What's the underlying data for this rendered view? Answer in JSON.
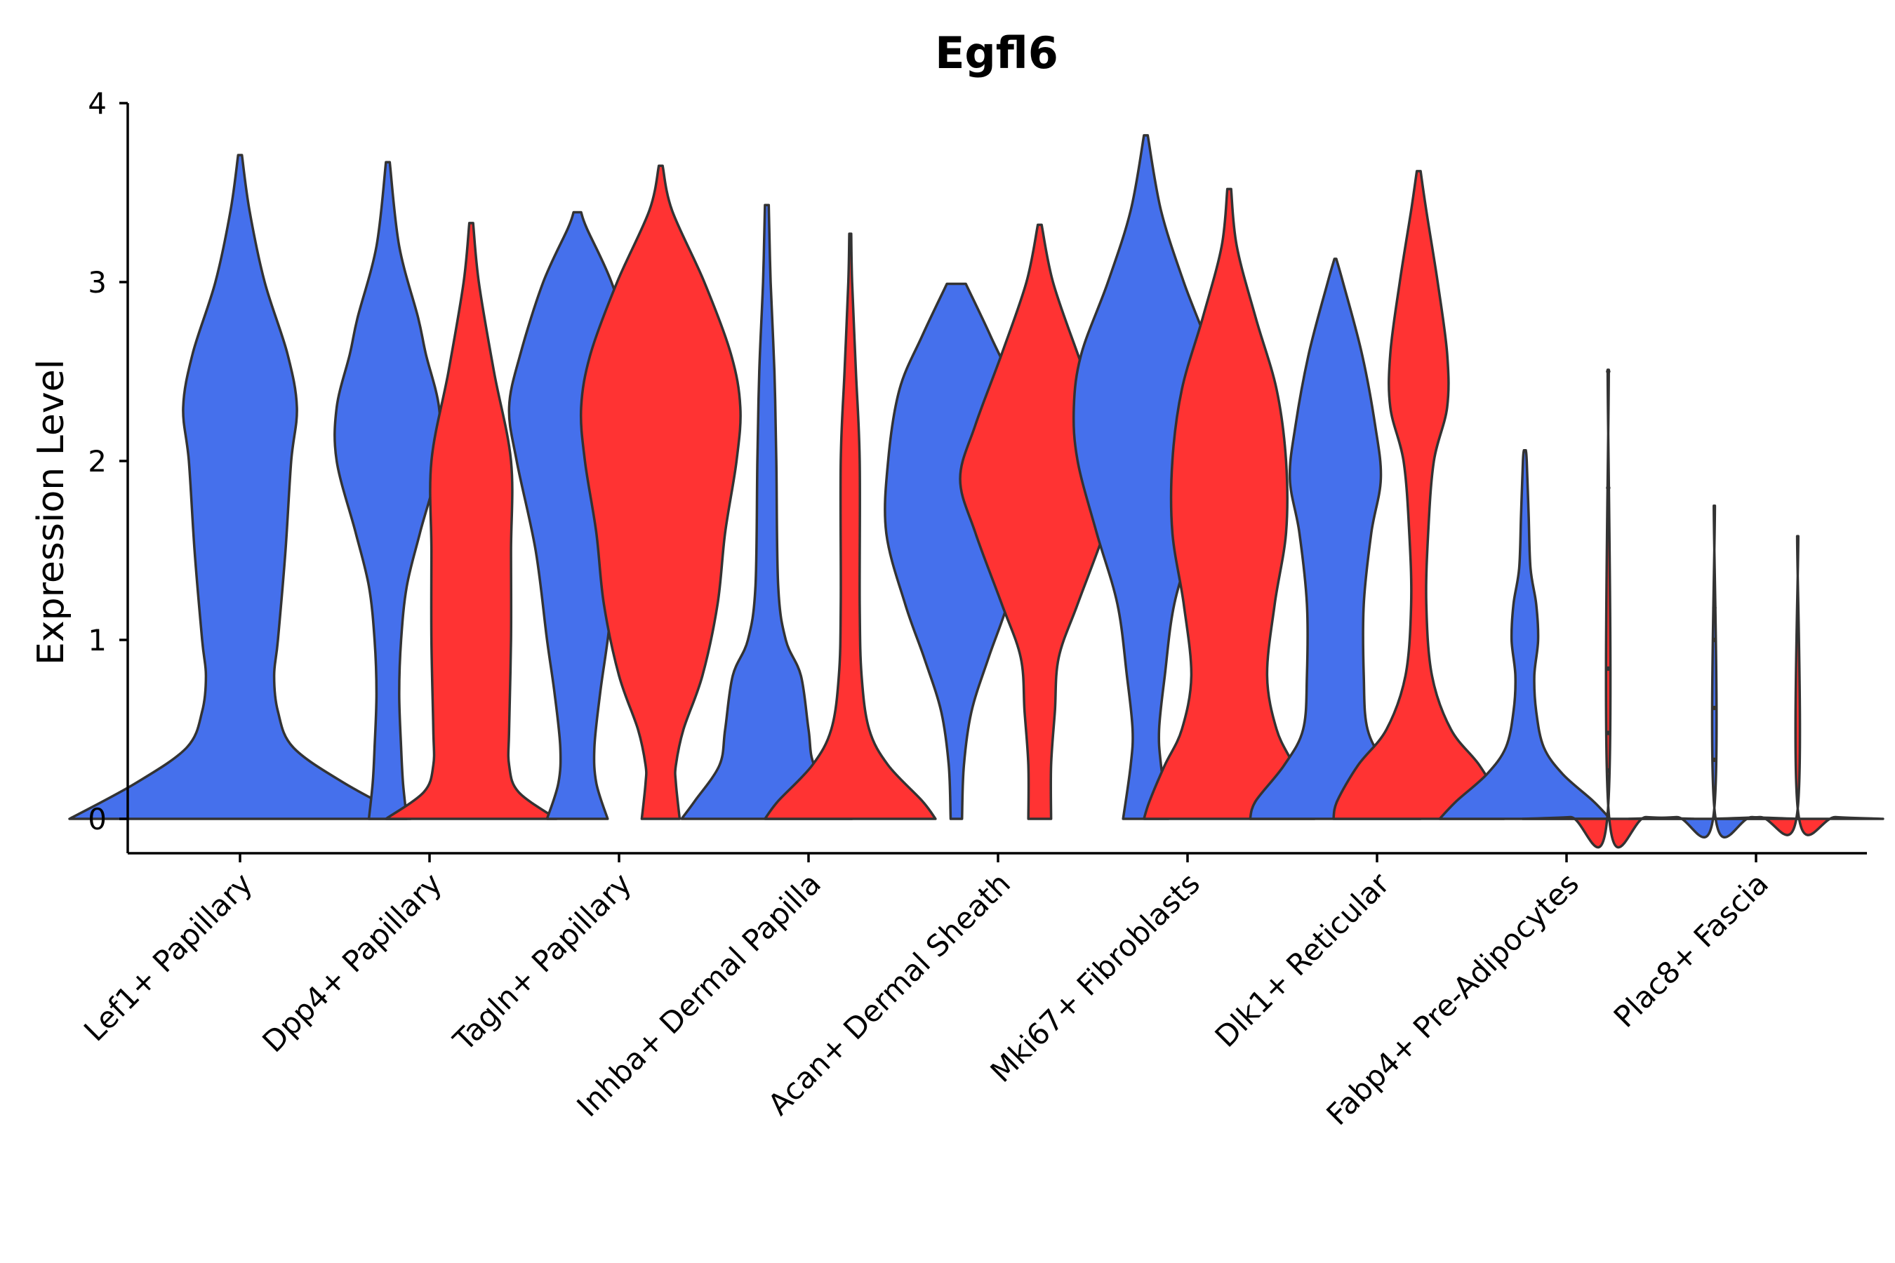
{
  "chart_data": {
    "type": "violin",
    "title": "Egfl6",
    "xlabel": "",
    "ylabel": "Expression Level",
    "ylim": [
      -0.19,
      4.0
    ],
    "yticks": [
      0,
      1,
      2,
      3,
      4
    ],
    "grid": false,
    "legend": "none",
    "colors": {
      "blue": "#4570EC",
      "red": "#FF3333",
      "outline": "#333333"
    },
    "categories": [
      "Lef1+ Papillary",
      "Dpp4+ Papillary",
      "Tagln+ Papillary",
      "Inhba+ Dermal Papilla",
      "Acan+ Dermal Sheath",
      "Mki67+ Fibroblasts",
      "Dlk1+ Reticular",
      "Fabp4+ Pre-Adipocytes",
      "Plac8+ Fascia"
    ],
    "violins": [
      {
        "category": 0,
        "offset": 0,
        "color": "blue",
        "max": 3.71,
        "profile": [
          [
            0,
            0.9
          ],
          [
            0.2,
            0.55
          ],
          [
            0.4,
            0.28
          ],
          [
            0.6,
            0.2
          ],
          [
            0.8,
            0.18
          ],
          [
            1.0,
            0.2
          ],
          [
            1.5,
            0.24
          ],
          [
            2.0,
            0.27
          ],
          [
            2.3,
            0.3
          ],
          [
            2.6,
            0.25
          ],
          [
            3.0,
            0.13
          ],
          [
            3.4,
            0.05
          ],
          [
            3.71,
            0.01
          ]
        ]
      },
      {
        "category": 1,
        "offset": -0.22,
        "color": "blue",
        "max": 3.67,
        "profile": [
          [
            0,
            0.1
          ],
          [
            0.2,
            0.08
          ],
          [
            0.4,
            0.07
          ],
          [
            0.7,
            0.06
          ],
          [
            1.0,
            0.07
          ],
          [
            1.3,
            0.1
          ],
          [
            1.6,
            0.17
          ],
          [
            2.0,
            0.27
          ],
          [
            2.3,
            0.27
          ],
          [
            2.6,
            0.2
          ],
          [
            2.8,
            0.16
          ],
          [
            3.2,
            0.06
          ],
          [
            3.67,
            0.01
          ]
        ]
      },
      {
        "category": 1,
        "offset": 0.22,
        "color": "red",
        "max": 3.33,
        "profile": [
          [
            0,
            0.45
          ],
          [
            0.15,
            0.25
          ],
          [
            0.3,
            0.2
          ],
          [
            0.5,
            0.2
          ],
          [
            1.0,
            0.21
          ],
          [
            1.5,
            0.21
          ],
          [
            2.0,
            0.21
          ],
          [
            2.5,
            0.12
          ],
          [
            3.0,
            0.04
          ],
          [
            3.33,
            0.01
          ]
        ]
      },
      {
        "category": 2,
        "offset": -0.22,
        "color": "blue",
        "max": 3.39,
        "profile": [
          [
            0,
            0.16
          ],
          [
            0.2,
            0.1
          ],
          [
            0.4,
            0.09
          ],
          [
            0.7,
            0.12
          ],
          [
            1.0,
            0.16
          ],
          [
            1.5,
            0.22
          ],
          [
            2.0,
            0.32
          ],
          [
            2.3,
            0.36
          ],
          [
            2.6,
            0.3
          ],
          [
            3.0,
            0.18
          ],
          [
            3.3,
            0.05
          ],
          [
            3.39,
            0.02
          ]
        ]
      },
      {
        "category": 2,
        "offset": 0.22,
        "color": "red",
        "max": 3.65,
        "profile": [
          [
            0,
            0.1
          ],
          [
            0.2,
            0.08
          ],
          [
            0.3,
            0.08
          ],
          [
            0.5,
            0.12
          ],
          [
            0.8,
            0.22
          ],
          [
            1.2,
            0.3
          ],
          [
            1.6,
            0.34
          ],
          [
            2.0,
            0.4
          ],
          [
            2.3,
            0.42
          ],
          [
            2.6,
            0.37
          ],
          [
            3.0,
            0.23
          ],
          [
            3.4,
            0.06
          ],
          [
            3.65,
            0.01
          ]
        ]
      },
      {
        "category": 3,
        "offset": -0.22,
        "color": "blue",
        "max": 3.43,
        "profile": [
          [
            0,
            0.45
          ],
          [
            0.1,
            0.38
          ],
          [
            0.3,
            0.25
          ],
          [
            0.5,
            0.22
          ],
          [
            0.8,
            0.18
          ],
          [
            1.0,
            0.1
          ],
          [
            1.3,
            0.06
          ],
          [
            2.0,
            0.05
          ],
          [
            2.5,
            0.04
          ],
          [
            3.0,
            0.02
          ],
          [
            3.43,
            0.01
          ]
        ]
      },
      {
        "category": 3,
        "offset": 0.22,
        "color": "red",
        "max": 3.27,
        "profile": [
          [
            0,
            0.45
          ],
          [
            0.1,
            0.38
          ],
          [
            0.3,
            0.2
          ],
          [
            0.5,
            0.1
          ],
          [
            0.8,
            0.06
          ],
          [
            1.2,
            0.05
          ],
          [
            2.0,
            0.05
          ],
          [
            2.5,
            0.03
          ],
          [
            3.0,
            0.01
          ],
          [
            3.27,
            0.005
          ]
        ]
      },
      {
        "category": 4,
        "offset": -0.22,
        "color": "blue",
        "max": 2.99,
        "profile": [
          [
            0,
            0.03
          ],
          [
            0.3,
            0.04
          ],
          [
            0.6,
            0.08
          ],
          [
            0.9,
            0.17
          ],
          [
            1.2,
            0.27
          ],
          [
            1.6,
            0.37
          ],
          [
            2.0,
            0.36
          ],
          [
            2.4,
            0.3
          ],
          [
            2.7,
            0.18
          ],
          [
            2.99,
            0.05
          ]
        ]
      },
      {
        "category": 4,
        "offset": 0.22,
        "color": "red",
        "max": 3.32,
        "profile": [
          [
            0,
            0.06
          ],
          [
            0.3,
            0.06
          ],
          [
            0.6,
            0.08
          ],
          [
            0.9,
            0.1
          ],
          [
            1.2,
            0.2
          ],
          [
            1.6,
            0.34
          ],
          [
            1.9,
            0.42
          ],
          [
            2.2,
            0.34
          ],
          [
            2.6,
            0.2
          ],
          [
            3.0,
            0.07
          ],
          [
            3.32,
            0.01
          ]
        ]
      },
      {
        "category": 5,
        "offset": -0.22,
        "color": "blue",
        "max": 3.82,
        "profile": [
          [
            0,
            0.12
          ],
          [
            0.3,
            0.08
          ],
          [
            0.5,
            0.07
          ],
          [
            0.8,
            0.1
          ],
          [
            1.2,
            0.15
          ],
          [
            1.6,
            0.26
          ],
          [
            2.0,
            0.36
          ],
          [
            2.3,
            0.38
          ],
          [
            2.6,
            0.34
          ],
          [
            3.0,
            0.2
          ],
          [
            3.4,
            0.08
          ],
          [
            3.82,
            0.01
          ]
        ]
      },
      {
        "category": 5,
        "offset": 0.22,
        "color": "red",
        "max": 3.52,
        "profile": [
          [
            0,
            0.45
          ],
          [
            0.1,
            0.42
          ],
          [
            0.3,
            0.34
          ],
          [
            0.5,
            0.25
          ],
          [
            0.8,
            0.2
          ],
          [
            1.2,
            0.24
          ],
          [
            1.6,
            0.3
          ],
          [
            2.0,
            0.3
          ],
          [
            2.4,
            0.25
          ],
          [
            2.8,
            0.14
          ],
          [
            3.2,
            0.04
          ],
          [
            3.52,
            0.01
          ]
        ]
      },
      {
        "category": 6,
        "offset": -0.22,
        "color": "blue",
        "max": 3.13,
        "profile": [
          [
            0,
            0.45
          ],
          [
            0.1,
            0.42
          ],
          [
            0.3,
            0.27
          ],
          [
            0.5,
            0.17
          ],
          [
            0.8,
            0.15
          ],
          [
            1.2,
            0.15
          ],
          [
            1.6,
            0.19
          ],
          [
            1.9,
            0.24
          ],
          [
            2.2,
            0.21
          ],
          [
            2.6,
            0.14
          ],
          [
            3.0,
            0.04
          ],
          [
            3.13,
            0.005
          ]
        ]
      },
      {
        "category": 6,
        "offset": 0.22,
        "color": "red",
        "max": 3.62,
        "profile": [
          [
            0,
            0.45
          ],
          [
            0.1,
            0.43
          ],
          [
            0.3,
            0.32
          ],
          [
            0.5,
            0.17
          ],
          [
            0.8,
            0.07
          ],
          [
            1.2,
            0.04
          ],
          [
            1.6,
            0.05
          ],
          [
            2.0,
            0.08
          ],
          [
            2.3,
            0.15
          ],
          [
            2.6,
            0.15
          ],
          [
            3.0,
            0.1
          ],
          [
            3.4,
            0.04
          ],
          [
            3.62,
            0.01
          ]
        ]
      },
      {
        "category": 7,
        "offset": -0.22,
        "color": "blue",
        "max": 2.06,
        "profile": [
          [
            0,
            0.45
          ],
          [
            0.1,
            0.36
          ],
          [
            0.25,
            0.2
          ],
          [
            0.4,
            0.1
          ],
          [
            0.6,
            0.06
          ],
          [
            0.8,
            0.05
          ],
          [
            1.0,
            0.07
          ],
          [
            1.2,
            0.06
          ],
          [
            1.4,
            0.03
          ],
          [
            1.7,
            0.02
          ],
          [
            2.0,
            0.01
          ],
          [
            2.06,
            0.005
          ]
        ]
      },
      {
        "category": 7,
        "offset": 0.22,
        "color": "red",
        "max": 2.51,
        "profile": [
          [
            0,
            0.45
          ],
          [
            0.01,
            0.2
          ],
          [
            0.03,
            0.003
          ],
          [
            2.51,
            0.003
          ]
        ]
      },
      {
        "category": 8,
        "offset": -0.22,
        "color": "blue",
        "max": 1.75,
        "profile": [
          [
            0,
            0.45
          ],
          [
            0.01,
            0.2
          ],
          [
            0.03,
            0.003
          ],
          [
            1.75,
            0.003
          ]
        ]
      },
      {
        "category": 8,
        "offset": 0.22,
        "color": "red",
        "max": 1.58,
        "profile": [
          [
            0,
            0.45
          ],
          [
            0.01,
            0.2
          ],
          [
            0.03,
            0.003
          ],
          [
            1.58,
            0.003
          ]
        ]
      }
    ],
    "outliers": [
      {
        "category": 7,
        "offset": 0.22,
        "values": [
          0.23,
          0.27,
          0.48,
          0.84,
          1.85,
          2.5
        ]
      },
      {
        "category": 8,
        "offset": -0.22,
        "values": [
          0.33,
          0.62,
          1.0,
          1.18
        ]
      }
    ]
  }
}
